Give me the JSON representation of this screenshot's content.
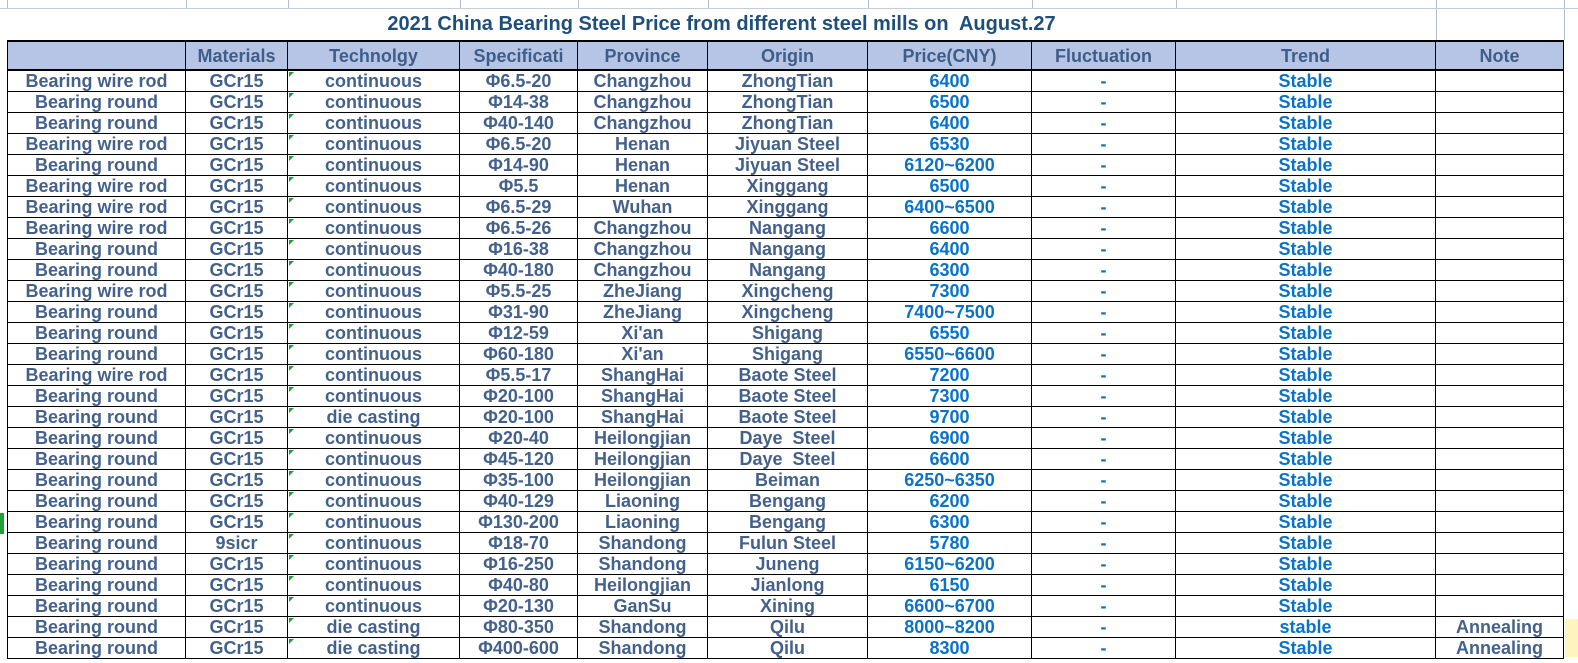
{
  "title": "2021 China Bearing Steel Price from different steel mills on  August.27",
  "columns": [
    "",
    "Materials",
    "Technolgy",
    "Specificati",
    "Province",
    "Origin",
    "Price(CNY)",
    "Fluctuation",
    "Trend",
    "Note"
  ],
  "colors": {
    "header_bg": "#b6c5e6",
    "header_text": "#3f5d88",
    "dark_text": "#44618c",
    "bright_text": "#0a72c8",
    "title_text": "#1f4e79",
    "indicator_green": "#21a038",
    "border_black": "#000000",
    "gridline": "#b3bdd4",
    "yellow_cell": "#fdf4bf"
  },
  "rows": [
    {
      "product": "Bearing wire rod",
      "material": "GCr15",
      "technology": "continuous",
      "spec": "Φ6.5-20",
      "province": "Changzhou",
      "origin": "ZhongTian",
      "price": "6400",
      "fluctuation": "-",
      "trend": "Stable",
      "note": ""
    },
    {
      "product": "Bearing round",
      "material": "GCr15",
      "technology": "continuous",
      "spec": "Φ14-38",
      "province": "Changzhou",
      "origin": "ZhongTian",
      "price": "6500",
      "fluctuation": "-",
      "trend": "Stable",
      "note": ""
    },
    {
      "product": "Bearing round",
      "material": "GCr15",
      "technology": "continuous",
      "spec": "Φ40-140",
      "province": "Changzhou",
      "origin": "ZhongTian",
      "price": "6400",
      "fluctuation": "-",
      "trend": "Stable",
      "note": ""
    },
    {
      "product": "Bearing wire rod",
      "material": "GCr15",
      "technology": "continuous",
      "spec": "Φ6.5-20",
      "province": "Henan",
      "origin": "Jiyuan Steel",
      "price": "6530",
      "fluctuation": "-",
      "trend": "Stable",
      "note": ""
    },
    {
      "product": "Bearing round",
      "material": "GCr15",
      "technology": "continuous",
      "spec": "Φ14-90",
      "province": "Henan",
      "origin": "Jiyuan Steel",
      "price": "6120~6200",
      "fluctuation": "-",
      "trend": "Stable",
      "note": ""
    },
    {
      "product": "Bearing wire rod",
      "material": "GCr15",
      "technology": "continuous",
      "spec": "Φ5.5",
      "province": "Henan",
      "origin": "Xinggang",
      "price": "6500",
      "fluctuation": "-",
      "trend": "Stable",
      "note": ""
    },
    {
      "product": "Bearing wire rod",
      "material": "GCr15",
      "technology": "continuous",
      "spec": "Φ6.5-29",
      "province": "Wuhan",
      "origin": "Xinggang",
      "price": "6400~6500",
      "fluctuation": "-",
      "trend": "Stable",
      "note": ""
    },
    {
      "product": "Bearing wire rod",
      "material": "GCr15",
      "technology": "continuous",
      "spec": "Φ6.5-26",
      "province": "Changzhou",
      "origin": "Nangang",
      "price": "6600",
      "fluctuation": "-",
      "trend": "Stable",
      "note": ""
    },
    {
      "product": "Bearing round",
      "material": "GCr15",
      "technology": "continuous",
      "spec": "Φ16-38",
      "province": "Changzhou",
      "origin": "Nangang",
      "price": "6400",
      "fluctuation": "-",
      "trend": "Stable",
      "note": ""
    },
    {
      "product": "Bearing round",
      "material": "GCr15",
      "technology": "continuous",
      "spec": "Φ40-180",
      "province": "Changzhou",
      "origin": "Nangang",
      "price": "6300",
      "fluctuation": "-",
      "trend": "Stable",
      "note": ""
    },
    {
      "product": "Bearing wire rod",
      "material": "GCr15",
      "technology": "continuous",
      "spec": "Φ5.5-25",
      "province": "ZheJiang",
      "origin": "Xingcheng",
      "price": "7300",
      "fluctuation": "-",
      "trend": "Stable",
      "note": ""
    },
    {
      "product": "Bearing round",
      "material": "GCr15",
      "technology": "continuous",
      "spec": "Φ31-90",
      "province": "ZheJiang",
      "origin": "Xingcheng",
      "price": "7400~7500",
      "fluctuation": "-",
      "trend": "Stable",
      "note": ""
    },
    {
      "product": "Bearing round",
      "material": "GCr15",
      "technology": "continuous",
      "spec": "Φ12-59",
      "province": "Xi'an",
      "origin": "Shigang",
      "price": "6550",
      "fluctuation": "-",
      "trend": "Stable",
      "note": ""
    },
    {
      "product": "Bearing round",
      "material": "GCr15",
      "technology": "continuous",
      "spec": "Φ60-180",
      "province": "Xi'an",
      "origin": "Shigang",
      "price": "6550~6600",
      "fluctuation": "-",
      "trend": "Stable",
      "note": ""
    },
    {
      "product": "Bearing wire rod",
      "material": "GCr15",
      "technology": "continuous",
      "spec": "Φ5.5-17",
      "province": "ShangHai",
      "origin": "Baote Steel",
      "price": "7200",
      "fluctuation": "-",
      "trend": "Stable",
      "note": ""
    },
    {
      "product": "Bearing round",
      "material": "GCr15",
      "technology": "continuous",
      "spec": "Φ20-100",
      "province": "ShangHai",
      "origin": "Baote Steel",
      "price": "7300",
      "fluctuation": "-",
      "trend": "Stable",
      "note": ""
    },
    {
      "product": "Bearing round",
      "material": "GCr15",
      "technology": "die casting",
      "spec": "Φ20-100",
      "province": "ShangHai",
      "origin": "Baote Steel",
      "price": "9700",
      "fluctuation": "-",
      "trend": "Stable",
      "note": ""
    },
    {
      "product": "Bearing round",
      "material": "GCr15",
      "technology": "continuous",
      "spec": "Φ20-40",
      "province": "Heilongjian",
      "origin": "Daye  Steel",
      "price": "6900",
      "fluctuation": "-",
      "trend": "Stable",
      "note": ""
    },
    {
      "product": "Bearing round",
      "material": "GCr15",
      "technology": "continuous",
      "spec": "Φ45-120",
      "province": "Heilongjian",
      "origin": "Daye  Steel",
      "price": "6600",
      "fluctuation": "-",
      "trend": "Stable",
      "note": ""
    },
    {
      "product": "Bearing round",
      "material": "GCr15",
      "technology": "continuous",
      "spec": "Φ35-100",
      "province": "Heilongjian",
      "origin": "Beiman",
      "price": "6250~6350",
      "fluctuation": "-",
      "trend": "Stable",
      "note": ""
    },
    {
      "product": "Bearing round",
      "material": "GCr15",
      "technology": "continuous",
      "spec": "Φ40-129",
      "province": "Liaoning",
      "origin": "Bengang",
      "price": "6200",
      "fluctuation": "-",
      "trend": "Stable",
      "note": ""
    },
    {
      "product": "Bearing round",
      "material": "GCr15",
      "technology": "continuous",
      "spec": "Φ130-200",
      "province": "Liaoning",
      "origin": "Bengang",
      "price": "6300",
      "fluctuation": "-",
      "trend": "Stable",
      "note": ""
    },
    {
      "product": "Bearing round",
      "material": "9sicr",
      "technology": "continuous",
      "spec": "Φ18-70",
      "province": "Shandong",
      "origin": "Fulun Steel",
      "price": "5780",
      "fluctuation": "-",
      "trend": "Stable",
      "note": ""
    },
    {
      "product": "Bearing round",
      "material": "GCr15",
      "technology": "continuous",
      "spec": "Φ16-250",
      "province": "Shandong",
      "origin": "Juneng",
      "price": "6150~6200",
      "fluctuation": "-",
      "trend": "Stable",
      "note": ""
    },
    {
      "product": "Bearing round",
      "material": "GCr15",
      "technology": "continuous",
      "spec": "Φ40-80",
      "province": "Heilongjian",
      "origin": "Jianlong",
      "price": "6150",
      "fluctuation": "-",
      "trend": "Stable",
      "note": ""
    },
    {
      "product": "Bearing round",
      "material": "GCr15",
      "technology": "continuous",
      "spec": "Φ20-130",
      "province": "GanSu",
      "origin": "Xining",
      "price": "6600~6700",
      "fluctuation": "-",
      "trend": "Stable",
      "note": ""
    },
    {
      "product": "Bearing round",
      "material": "GCr15",
      "technology": "die casting",
      "spec": "Φ80-350",
      "province": "Shandong",
      "origin": "Qilu",
      "price": "8000~8200",
      "fluctuation": "-",
      "trend": "stable",
      "note": "Annealing"
    },
    {
      "product": "Bearing round",
      "material": "GCr15",
      "technology": "die casting",
      "spec": "Φ400-600",
      "province": "Shandong",
      "origin": "Qilu",
      "price": "8300",
      "fluctuation": "-",
      "trend": "Stable",
      "note": "Annealing"
    }
  ]
}
